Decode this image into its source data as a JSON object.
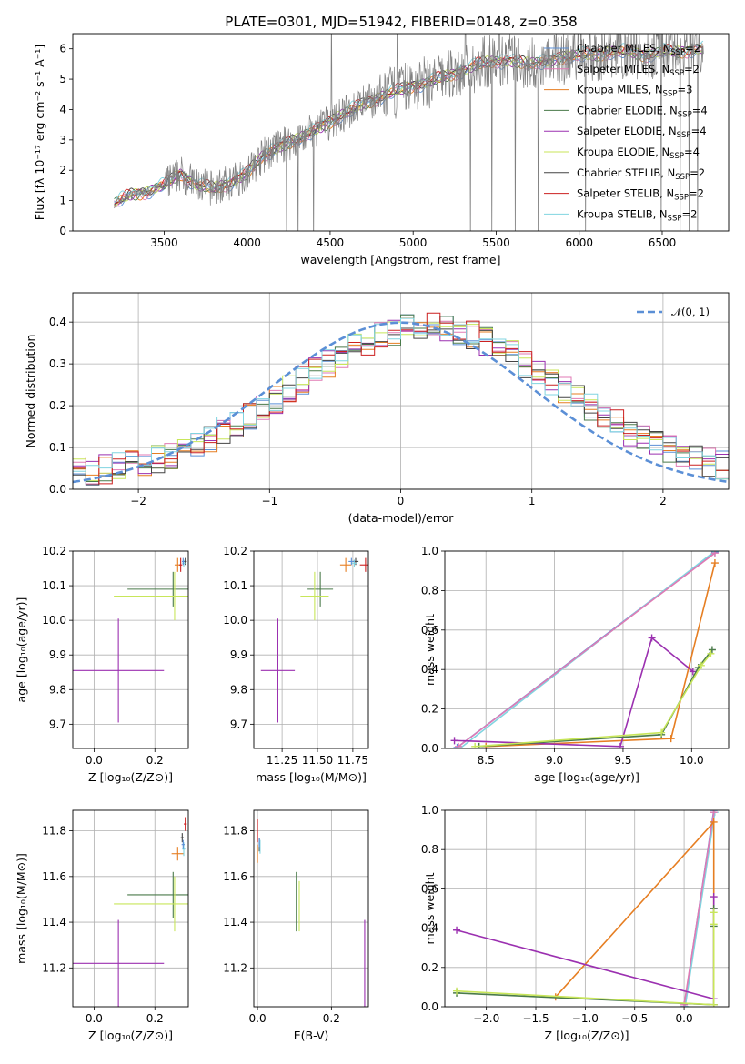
{
  "figure_title": "PLATE=0301, MJD=51942, FIBERID=0148, z=0.358",
  "colors": {
    "Chabrier MILES": "#5b8fd6",
    "Salpeter MILES": "#e07ab4",
    "Kroupa MILES": "#e67e22",
    "Chabrier ELODIE": "#4a7a4a",
    "Salpeter ELODIE": "#9b30b0",
    "Kroupa ELODIE": "#c8e65a",
    "Chabrier STELIB": "#444444",
    "Salpeter STELIB": "#cc2020",
    "Kroupa STELIB": "#80d4e0",
    "data": "#808080",
    "normal": "#5b8fd6"
  },
  "chart_data": [
    {
      "id": "spectrum",
      "type": "line",
      "title": "PLATE=0301, MJD=51942, FIBERID=0148, z=0.358",
      "xlabel": "wavelength [Angstrom, rest frame]",
      "ylabel": "Flux [fλ 10⁻¹⁷ erg cm⁻² s⁻¹ A⁻¹]",
      "xlim": [
        2950,
        6900
      ],
      "ylim": [
        0,
        6.5
      ],
      "xticks": [
        3500,
        4000,
        4500,
        5000,
        5500,
        6000,
        6500
      ],
      "yticks": [
        0,
        1,
        2,
        3,
        4,
        5,
        6
      ],
      "grid": false,
      "legend_placement": "top-right",
      "continuum": {
        "x": [
          3200,
          3300,
          3400,
          3500,
          3600,
          3700,
          3800,
          3900,
          4000,
          4100,
          4200,
          4300,
          4400,
          4500,
          4600,
          4700,
          4800,
          4900,
          5000,
          5100,
          5200,
          5300,
          5400,
          5500,
          5600,
          5700,
          5800,
          5900,
          6000,
          6100,
          6200,
          6300,
          6400,
          6500,
          6600,
          6700,
          6750
        ],
        "y": [
          0.9,
          1.2,
          1.3,
          1.5,
          1.9,
          1.5,
          1.4,
          1.6,
          1.9,
          2.5,
          2.8,
          3.0,
          3.3,
          3.6,
          3.9,
          4.2,
          4.4,
          4.6,
          4.8,
          4.9,
          5.1,
          5.3,
          5.5,
          5.6,
          5.6,
          5.5,
          5.6,
          5.7,
          5.8,
          5.8,
          5.9,
          5.9,
          5.8,
          5.9,
          5.9,
          6.0,
          6.0
        ]
      },
      "series": [
        {
          "name": "Chabrier MILES, N_SSP=2",
          "label_main": "Chabrier MILES, N",
          "label_sub": "SSP",
          "label_end": "=2"
        },
        {
          "name": "Salpeter MILES, N_SSP=2",
          "label_main": "Salpeter MILES, N",
          "label_sub": "SSP",
          "label_end": "=2"
        },
        {
          "name": "Kroupa MILES, N_SSP=3",
          "label_main": "Kroupa MILES, N",
          "label_sub": "SSP",
          "label_end": "=3"
        },
        {
          "name": "Chabrier ELODIE, N_SSP=4",
          "label_main": "Chabrier ELODIE, N",
          "label_sub": "SSP",
          "label_end": "=4"
        },
        {
          "name": "Salpeter ELODIE, N_SSP=4",
          "label_main": "Salpeter ELODIE, N",
          "label_sub": "SSP",
          "label_end": "=4"
        },
        {
          "name": "Kroupa ELODIE, N_SSP=4",
          "label_main": "Kroupa ELODIE, N",
          "label_sub": "SSP",
          "label_end": "=4"
        },
        {
          "name": "Chabrier STELIB, N_SSP=2",
          "label_main": "Chabrier STELIB, N",
          "label_sub": "SSP",
          "label_end": "=2"
        },
        {
          "name": "Salpeter STELIB, N_SSP=2",
          "label_main": "Salpeter STELIB, N",
          "label_sub": "SSP",
          "label_end": "=2"
        },
        {
          "name": "Kroupa STELIB, N_SSP=2",
          "label_main": "Kroupa STELIB, N",
          "label_sub": "SSP",
          "label_end": "=2"
        }
      ]
    },
    {
      "id": "residuals",
      "type": "line",
      "xlabel": "(data-model)/error",
      "ylabel": "Normed distribution",
      "xlim": [
        -2.5,
        2.5
      ],
      "ylim": [
        0,
        0.47
      ],
      "xticks": [
        -2,
        -1,
        0,
        1,
        2
      ],
      "yticks": [
        0.0,
        0.1,
        0.2,
        0.3,
        0.4
      ],
      "grid": true,
      "legend_placement": "top-right",
      "legend": "𝒩(0, 1)",
      "bin_width": 0.1
    },
    {
      "id": "age_vs_Z",
      "type": "scatter",
      "xlabel": "Z [log₁₀(Z/Z⊙)]",
      "ylabel": "age  [log₁₀(age/yr)]",
      "xlim": [
        -0.07,
        0.31
      ],
      "ylim": [
        9.63,
        10.2
      ],
      "xticks": [
        0.0,
        0.2
      ],
      "yticks": [
        9.7,
        9.8,
        9.9,
        10.0,
        10.1,
        10.2
      ],
      "grid": true,
      "points": [
        {
          "model": "Salpeter ELODIE",
          "x": 0.08,
          "xerr": 0.15,
          "y": 9.855,
          "yerr": 0.15
        },
        {
          "model": "Chabrier ELODIE",
          "x": 0.26,
          "xerr": 0.15,
          "y": 10.09,
          "yerr": 0.05
        },
        {
          "model": "Kroupa ELODIE",
          "x": 0.265,
          "xerr": 0.2,
          "y": 10.07,
          "yerr": 0.07
        },
        {
          "model": "Kroupa MILES",
          "x": 0.275,
          "xerr": 0.01,
          "y": 10.16,
          "yerr": 0.02
        },
        {
          "model": "Salpeter STELIB",
          "x": 0.285,
          "xerr": 0.005,
          "y": 10.16,
          "yerr": 0.02
        },
        {
          "model": "Chabrier STELIB",
          "x": 0.3,
          "xerr": 0.005,
          "y": 10.17,
          "yerr": 0.01
        },
        {
          "model": "Kroupa STELIB",
          "x": 0.295,
          "xerr": 0.005,
          "y": 10.165,
          "yerr": 0.01
        },
        {
          "model": "Chabrier MILES",
          "x": 0.293,
          "xerr": 0.004,
          "y": 10.17,
          "yerr": 0.01
        }
      ]
    },
    {
      "id": "age_vs_mass",
      "type": "scatter",
      "xlabel": "mass [log₁₀(M/M⊙)]",
      "ylabel": "",
      "xlim": [
        11.05,
        11.86
      ],
      "ylim": [
        9.63,
        10.2
      ],
      "xticks": [
        11.25,
        11.5,
        11.75
      ],
      "xticklabels": [
        "11.25",
        "11.50",
        "11.75"
      ],
      "yticks": [
        9.7,
        9.8,
        9.9,
        10.0,
        10.1,
        10.2
      ],
      "grid": true,
      "points": [
        {
          "model": "Salpeter ELODIE",
          "x": 11.22,
          "xerr": 0.12,
          "y": 9.855,
          "yerr": 0.15
        },
        {
          "model": "Chabrier ELODIE",
          "x": 11.52,
          "xerr": 0.09,
          "y": 10.09,
          "yerr": 0.05
        },
        {
          "model": "Kroupa ELODIE",
          "x": 11.48,
          "xerr": 0.1,
          "y": 10.07,
          "yerr": 0.07
        },
        {
          "model": "Kroupa MILES",
          "x": 11.7,
          "xerr": 0.04,
          "y": 10.16,
          "yerr": 0.02
        },
        {
          "model": "Salpeter STELIB",
          "x": 11.84,
          "xerr": 0.04,
          "y": 10.16,
          "yerr": 0.02
        },
        {
          "model": "Chabrier STELIB",
          "x": 11.77,
          "xerr": 0.02,
          "y": 10.17,
          "yerr": 0.01
        },
        {
          "model": "Kroupa STELIB",
          "x": 11.76,
          "xerr": 0.02,
          "y": 10.165,
          "yerr": 0.01
        },
        {
          "model": "Chabrier MILES",
          "x": 11.74,
          "xerr": 0.02,
          "y": 10.17,
          "yerr": 0.01
        }
      ]
    },
    {
      "id": "weight_vs_age",
      "type": "line",
      "xlabel": "age  [log₁₀(age/yr)]",
      "ylabel": "mass weight",
      "xlim": [
        8.2,
        10.27
      ],
      "ylim": [
        0,
        1
      ],
      "xticks": [
        8.5,
        9.0,
        9.5,
        10.0
      ],
      "yticks": [
        0.0,
        0.2,
        0.4,
        0.6,
        0.8,
        1.0
      ],
      "grid": true,
      "series": [
        {
          "model": "Chabrier MILES",
          "x": [
            8.29,
            10.17
          ],
          "y": [
            0.005,
            0.995
          ]
        },
        {
          "model": "Kroupa STELIB",
          "x": [
            8.31,
            10.17
          ],
          "y": [
            0.0,
            1.0
          ]
        },
        {
          "model": "Salpeter MILES",
          "x": [
            8.3,
            10.17
          ],
          "y": [
            0.01,
            0.99
          ]
        },
        {
          "model": "Kroupa MILES",
          "x": [
            8.5,
            9.85,
            10.17
          ],
          "y": [
            0.01,
            0.05,
            0.94
          ]
        },
        {
          "model": "Salpeter ELODIE",
          "x": [
            8.27,
            9.48,
            9.71,
            10.01
          ],
          "y": [
            0.04,
            0.01,
            0.56,
            0.39
          ]
        },
        {
          "model": "Chabrier ELODIE",
          "x": [
            8.45,
            9.78,
            10.05,
            10.15
          ],
          "y": [
            0.01,
            0.07,
            0.41,
            0.5
          ]
        },
        {
          "model": "Kroupa ELODIE",
          "x": [
            8.42,
            9.78,
            10.07,
            10.14
          ],
          "y": [
            0.01,
            0.08,
            0.42,
            0.48
          ]
        }
      ]
    },
    {
      "id": "mass_vs_Z",
      "type": "scatter",
      "xlabel": "Z [log₁₀(Z/Z⊙)]",
      "ylabel": "mass [log₁₀(M/M⊙)]",
      "xlim": [
        -0.07,
        0.31
      ],
      "ylim": [
        11.03,
        11.89
      ],
      "xticks": [
        0.0,
        0.2
      ],
      "yticks": [
        11.2,
        11.4,
        11.6,
        11.8
      ],
      "grid": true,
      "points": [
        {
          "model": "Salpeter ELODIE",
          "x": 0.08,
          "xerr": 0.15,
          "y": 11.22,
          "yerr": 0.19
        },
        {
          "model": "Chabrier ELODIE",
          "x": 0.26,
          "xerr": 0.15,
          "y": 11.52,
          "yerr": 0.1
        },
        {
          "model": "Kroupa ELODIE",
          "x": 0.265,
          "xerr": 0.2,
          "y": 11.48,
          "yerr": 0.12
        },
        {
          "model": "Kroupa MILES",
          "x": 0.275,
          "xerr": 0.02,
          "y": 11.7,
          "yerr": 0.03
        },
        {
          "model": "Salpeter STELIB",
          "x": 0.3,
          "xerr": 0.005,
          "y": 11.83,
          "yerr": 0.03
        },
        {
          "model": "Chabrier STELIB",
          "x": 0.29,
          "xerr": 0.005,
          "y": 11.77,
          "yerr": 0.02
        },
        {
          "model": "Kroupa STELIB",
          "x": 0.295,
          "xerr": 0.005,
          "y": 11.72,
          "yerr": 0.03
        },
        {
          "model": "Chabrier MILES",
          "x": 0.293,
          "xerr": 0.005,
          "y": 11.74,
          "yerr": 0.02
        }
      ]
    },
    {
      "id": "mass_vs_EBV",
      "type": "scatter",
      "xlabel": "E(B-V)",
      "ylabel": "",
      "xlim": [
        -0.01,
        0.3
      ],
      "ylim": [
        11.03,
        11.89
      ],
      "xticks": [
        0.0,
        0.2
      ],
      "yticks": [
        11.2,
        11.4,
        11.6,
        11.8
      ],
      "grid": true,
      "points": [
        {
          "model": "Salpeter ELODIE",
          "x": 0.29,
          "xerr": 0.0,
          "y": 11.18,
          "yerr": 0.23
        },
        {
          "model": "Chabrier ELODIE",
          "x": 0.105,
          "xerr": 0.0,
          "y": 11.49,
          "yerr": 0.13
        },
        {
          "model": "Kroupa ELODIE",
          "x": 0.113,
          "xerr": 0.0,
          "y": 11.47,
          "yerr": 0.11
        },
        {
          "model": "Salpeter STELIB",
          "x": 0.0,
          "xerr": 0.0,
          "y": 11.8,
          "yerr": 0.05
        },
        {
          "model": "Kroupa MILES",
          "x": 0.0,
          "xerr": 0.0,
          "y": 11.7,
          "yerr": 0.04
        },
        {
          "model": "Chabrier STELIB",
          "x": 0.005,
          "xerr": 0.0,
          "y": 11.74,
          "yerr": 0.03
        },
        {
          "model": "Kroupa STELIB",
          "x": 0.007,
          "xerr": 0.0,
          "y": 11.73,
          "yerr": 0.03
        },
        {
          "model": "Chabrier MILES",
          "x": 0.005,
          "xerr": 0.0,
          "y": 11.75,
          "yerr": 0.02
        }
      ]
    },
    {
      "id": "weight_vs_Z",
      "type": "line",
      "xlabel": "Z [log₁₀(Z/Z⊙)]",
      "ylabel": "mass weight",
      "xlim": [
        -2.42,
        0.45
      ],
      "ylim": [
        0,
        1
      ],
      "xticks": [
        -2.0,
        -1.5,
        -1.0,
        -0.5,
        0.0
      ],
      "yticks": [
        0.0,
        0.2,
        0.4,
        0.6,
        0.8,
        1.0
      ],
      "grid": true,
      "series": [
        {
          "model": "Chabrier MILES",
          "x": [
            0.0,
            0.3
          ],
          "y": [
            0.0,
            1.0
          ]
        },
        {
          "model": "Kroupa STELIB",
          "x": [
            0.01,
            0.31
          ],
          "y": [
            0.0,
            0.99
          ]
        },
        {
          "model": "Salpeter MILES",
          "x": [
            0.0,
            0.3
          ],
          "y": [
            0.01,
            0.99
          ]
        },
        {
          "model": "Kroupa MILES",
          "x": [
            -1.3,
            0.3,
            0.3
          ],
          "y": [
            0.05,
            0.94,
            0.01
          ]
        },
        {
          "model": "Salpeter ELODIE",
          "x": [
            -2.3,
            0.3,
            0.3,
            0.3
          ],
          "y": [
            0.39,
            0.04,
            0.5,
            0.56
          ]
        },
        {
          "model": "Chabrier ELODIE",
          "x": [
            -2.3,
            0.3,
            0.3,
            0.3
          ],
          "y": [
            0.07,
            0.01,
            0.41,
            0.5
          ]
        },
        {
          "model": "Kroupa ELODIE",
          "x": [
            -2.3,
            0.3,
            0.3,
            0.3
          ],
          "y": [
            0.08,
            0.01,
            0.42,
            0.48
          ]
        }
      ]
    }
  ]
}
